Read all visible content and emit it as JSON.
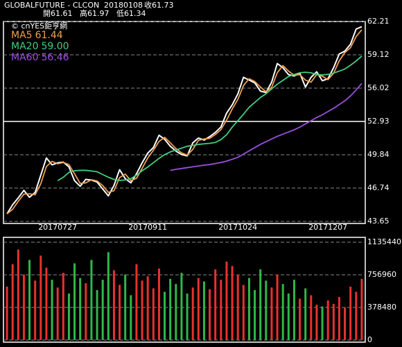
{
  "header": {
    "symbol": "GLOBALFUTURE - CLCON",
    "date": "20180108",
    "quotes": [
      {
        "label": "收",
        "value": 61.73
      },
      {
        "label": "開",
        "value": 61.61
      },
      {
        "label": "高",
        "value": 61.97
      },
      {
        "label": "低",
        "value": 61.34
      }
    ],
    "copyright": "© cnYES鉅亨網"
  },
  "chart_data": [
    {
      "type": "line",
      "categories": [
        null,
        null,
        null,
        null,
        null,
        null,
        null,
        null,
        null,
        "20170727",
        null,
        null,
        null,
        null,
        null,
        null,
        null,
        null,
        null,
        null,
        null,
        null,
        null,
        null,
        null,
        "20170911",
        null,
        null,
        null,
        null,
        null,
        null,
        null,
        null,
        null,
        null,
        null,
        null,
        null,
        null,
        null,
        "20171024",
        null,
        null,
        null,
        null,
        null,
        null,
        null,
        null,
        null,
        null,
        null,
        null,
        null,
        null,
        null,
        "20171207",
        null,
        null,
        null,
        null,
        null,
        null
      ],
      "series": [
        {
          "color": "#ffffff",
          "values": [
            44.35,
            45.19,
            45.83,
            46.53,
            45.89,
            46.34,
            47.94,
            49.54,
            48.9,
            49.09,
            49.15,
            48.71,
            47.43,
            46.91,
            47.55,
            47.49,
            47.3,
            46.66,
            46.02,
            46.98,
            48.45,
            47.62,
            47.23,
            48.07,
            49.09,
            49.99,
            50.5,
            51.65,
            51.27,
            50.63,
            50.18,
            49.86,
            49.73,
            50.95,
            51.39,
            51.2,
            51.52,
            51.91,
            52.42,
            53.7,
            54.47,
            55.49,
            57.03,
            56.77,
            56.51,
            55.75,
            55.62,
            56.58,
            58.31,
            57.92,
            57.28,
            57.15,
            57.41,
            56.13,
            57.03,
            57.54,
            56.71,
            56.9,
            57.92,
            59.2,
            59.46,
            60.1,
            61.51,
            61.73
          ]
        },
        {
          "name": "MA5",
          "color": "#f0a050",
          "legend_value": "61.44",
          "values": [
            44.35,
            44.77,
            45.51,
            46.18,
            46.21,
            46.12,
            47.14,
            48.74,
            49.22,
            49.0,
            49.12,
            48.93,
            48.07,
            47.17,
            47.23,
            47.52,
            47.4,
            46.98,
            46.34,
            46.5,
            47.72,
            48.04,
            47.43,
            47.65,
            48.58,
            49.54,
            50.25,
            51.08,
            51.46,
            50.95,
            50.41,
            50.02,
            49.8,
            50.34,
            51.17,
            51.3,
            51.36,
            51.72,
            52.17,
            53.06,
            54.09,
            54.98,
            56.26,
            56.9,
            56.64,
            56.13,
            55.69,
            56.1,
            57.45,
            58.12,
            57.6,
            57.22,
            57.28,
            56.77,
            56.58,
            57.29,
            57.13,
            56.81,
            57.41,
            58.56,
            59.33,
            59.78,
            60.81,
            61.44
          ]
        },
        {
          "name": "MA20",
          "color": "#40d080",
          "legend_value": "59.00",
          "values": [
            null,
            null,
            null,
            null,
            null,
            null,
            null,
            null,
            null,
            47.43,
            47.75,
            48.2,
            48.35,
            48.39,
            48.39,
            48.33,
            48.26,
            48.0,
            47.75,
            47.55,
            47.45,
            47.5,
            47.62,
            47.95,
            48.35,
            48.7,
            49.1,
            49.5,
            49.85,
            50.1,
            50.28,
            50.45,
            50.63,
            50.7,
            50.8,
            50.85,
            50.9,
            50.98,
            51.25,
            51.7,
            52.4,
            53.0,
            53.6,
            54.25,
            54.7,
            55.15,
            55.5,
            55.95,
            56.39,
            56.75,
            57.1,
            57.3,
            57.45,
            57.5,
            57.45,
            57.3,
            57.25,
            57.3,
            57.42,
            57.6,
            57.8,
            58.15,
            58.55,
            59.0
          ]
        },
        {
          "name": "MA60",
          "color": "#9a50e0",
          "legend_value": "56.46",
          "values": [
            null,
            null,
            null,
            null,
            null,
            null,
            null,
            null,
            null,
            null,
            null,
            null,
            null,
            null,
            null,
            null,
            null,
            null,
            null,
            null,
            null,
            null,
            null,
            null,
            null,
            null,
            null,
            null,
            null,
            48.39,
            48.48,
            48.56,
            48.64,
            48.72,
            48.8,
            48.87,
            48.93,
            49.02,
            49.12,
            49.25,
            49.42,
            49.6,
            49.9,
            50.2,
            50.5,
            50.8,
            51.05,
            51.3,
            51.55,
            51.75,
            51.95,
            52.15,
            52.4,
            52.7,
            53.0,
            53.3,
            53.55,
            53.85,
            54.15,
            54.5,
            54.85,
            55.3,
            55.85,
            56.46
          ]
        }
      ],
      "ylim": [
        43.65,
        62.21
      ],
      "yticks": [
        62.21,
        59.12,
        56.02,
        52.93,
        49.84,
        46.74,
        43.65
      ],
      "solid_tick_index": 3,
      "grid": true
    },
    {
      "type": "bar",
      "values": [
        620000,
        880000,
        1050000,
        760000,
        930000,
        690000,
        980000,
        840000,
        700000,
        610000,
        780000,
        540000,
        890000,
        720000,
        660000,
        930000,
        580000,
        700000,
        1020000,
        810000,
        640000,
        760000,
        520000,
        880000,
        690000,
        740000,
        600000,
        830000,
        560000,
        710000,
        650000,
        780000,
        540000,
        610000,
        720000,
        680000,
        590000,
        820000,
        700000,
        910000,
        860000,
        760000,
        640000,
        720000,
        580000,
        820000,
        690000,
        610000,
        760000,
        650000,
        540000,
        700000,
        480000,
        600000,
        520000,
        410000,
        390000,
        460000,
        420000,
        500000,
        380000,
        620000,
        560000,
        710000
      ],
      "colors": [
        "#e8312f",
        "#e8312f",
        "#e8312f",
        "#e8312f",
        "#2fb84a",
        "#e8312f",
        "#e8312f",
        "#e8312f",
        "#2fb84a",
        "#e8312f",
        "#e8312f",
        "#2fb84a",
        "#2fb84a",
        "#2fb84a",
        "#e8312f",
        "#2fb84a",
        "#2fb84a",
        "#2fb84a",
        "#2fb84a",
        "#e8312f",
        "#e8312f",
        "#2fb84a",
        "#2fb84a",
        "#e8312f",
        "#e8312f",
        "#e8312f",
        "#e8312f",
        "#e8312f",
        "#2fb84a",
        "#2fb84a",
        "#2fb84a",
        "#2fb84a",
        "#2fb84a",
        "#e8312f",
        "#e8312f",
        "#2fb84a",
        "#e8312f",
        "#e8312f",
        "#e8312f",
        "#e8312f",
        "#e8312f",
        "#e8312f",
        "#e8312f",
        "#2fb84a",
        "#2fb84a",
        "#2fb84a",
        "#2fb84a",
        "#e8312f",
        "#e8312f",
        "#2fb84a",
        "#2fb84a",
        "#2fb84a",
        "#e8312f",
        "#2fb84a",
        "#e8312f",
        "#e8312f",
        "#2fb84a",
        "#e8312f",
        "#e8312f",
        "#e8312f",
        "#e8312f",
        "#e8312f",
        "#e8312f",
        "#e8312f"
      ],
      "ylim": [
        0,
        1135440
      ],
      "yticks": [
        1135440,
        756960,
        378480,
        0
      ],
      "grid": true
    }
  ]
}
